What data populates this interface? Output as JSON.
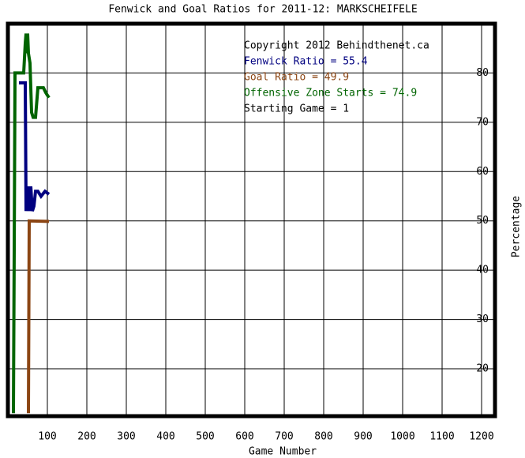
{
  "chart_data": {
    "type": "line",
    "title": "Fenwick and Goal Ratios for 2011-12: MARKSCHEIFELE",
    "x_label": "Game Number",
    "y_label": "Percentage",
    "annotations": [
      {
        "text": "Copyright 2012 Behindthenet.ca",
        "color": "#000000"
      },
      {
        "text": "Fenwick Ratio = 55.4",
        "color": "#000080"
      },
      {
        "text": "Goal Ratio = 49.9",
        "color": "#8b4513"
      },
      {
        "text": "Offensive Zone Starts = 74.9",
        "color": "#006400"
      },
      {
        "text": "Starting Game = 1",
        "color": "#000000"
      }
    ],
    "xlim": [
      0,
      1234
    ],
    "ylim": [
      10.4,
      90
    ],
    "xticks": [
      100,
      200,
      300,
      400,
      500,
      600,
      700,
      800,
      900,
      1000,
      1100,
      1200
    ],
    "yticks": [
      20,
      30,
      40,
      50,
      60,
      70,
      80
    ],
    "grid": true,
    "series": [
      {
        "name": "Offensive Zone Starts",
        "color": "#006400",
        "x": [
          14,
          16,
          18,
          30,
          40,
          44,
          46,
          48,
          50,
          52,
          56,
          60,
          64,
          70,
          76,
          84,
          90,
          96,
          104
        ],
        "values": [
          11,
          44,
          80,
          80,
          80,
          86,
          88,
          84,
          88,
          84,
          82,
          72,
          71,
          71,
          77,
          77,
          77,
          76,
          75
        ]
      },
      {
        "name": "Fenwick Ratio",
        "color": "#000080",
        "x": [
          28,
          36,
          44,
          46,
          50,
          54,
          58,
          62,
          66,
          70,
          76,
          84,
          94,
          104
        ],
        "values": [
          78,
          78,
          78,
          52,
          57,
          52,
          57,
          52,
          53,
          56,
          56,
          55,
          56,
          55.4
        ]
      },
      {
        "name": "Goal Ratio",
        "color": "#8b4513",
        "x": [
          52,
          54,
          104
        ],
        "values": [
          11,
          50,
          49.9
        ]
      }
    ]
  }
}
